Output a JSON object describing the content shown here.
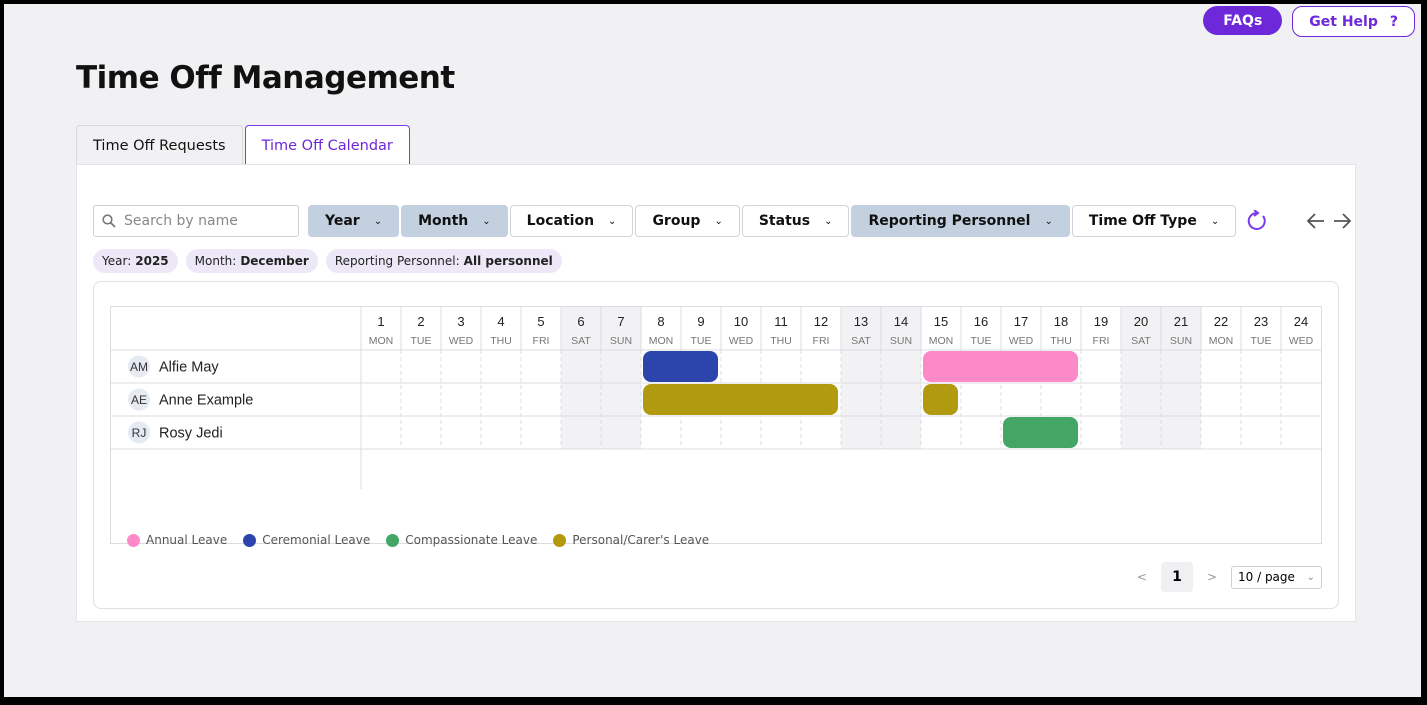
{
  "header": {
    "faqs_label": "FAQs",
    "help_label": "Get Help",
    "help_icon": "?"
  },
  "page_title": "Time Off Management",
  "tabs": [
    {
      "label": "Time Off Requests",
      "active": false
    },
    {
      "label": "Time Off Calendar",
      "active": true
    }
  ],
  "search": {
    "placeholder": "Search by name",
    "value": ""
  },
  "filters": [
    {
      "label": "Year",
      "active": true
    },
    {
      "label": "Month",
      "active": true
    },
    {
      "label": "Location",
      "active": false
    },
    {
      "label": "Group",
      "active": false
    },
    {
      "label": "Status",
      "active": false
    },
    {
      "label": "Reporting Personnel",
      "active": true
    },
    {
      "label": "Time Off Type",
      "active": false
    }
  ],
  "chips": [
    {
      "key": "Year:",
      "value": "2025"
    },
    {
      "key": "Month:",
      "value": "December"
    },
    {
      "key": "Reporting Personnel:",
      "value": "All personnel"
    }
  ],
  "calendar": {
    "days": [
      {
        "d": "1",
        "w": "MON"
      },
      {
        "d": "2",
        "w": "TUE"
      },
      {
        "d": "3",
        "w": "WED"
      },
      {
        "d": "4",
        "w": "THU"
      },
      {
        "d": "5",
        "w": "FRI"
      },
      {
        "d": "6",
        "w": "SAT"
      },
      {
        "d": "7",
        "w": "SUN"
      },
      {
        "d": "8",
        "w": "MON"
      },
      {
        "d": "9",
        "w": "TUE"
      },
      {
        "d": "10",
        "w": "WED"
      },
      {
        "d": "11",
        "w": "THU"
      },
      {
        "d": "12",
        "w": "FRI"
      },
      {
        "d": "13",
        "w": "SAT"
      },
      {
        "d": "14",
        "w": "SUN"
      },
      {
        "d": "15",
        "w": "MON"
      },
      {
        "d": "16",
        "w": "TUE"
      },
      {
        "d": "17",
        "w": "WED"
      },
      {
        "d": "18",
        "w": "THU"
      },
      {
        "d": "19",
        "w": "FRI"
      },
      {
        "d": "20",
        "w": "SAT"
      },
      {
        "d": "21",
        "w": "SUN"
      },
      {
        "d": "22",
        "w": "MON"
      },
      {
        "d": "23",
        "w": "TUE"
      },
      {
        "d": "24",
        "w": "WED"
      }
    ],
    "people": [
      {
        "initials": "AM",
        "name": "Alfie May"
      },
      {
        "initials": "AE",
        "name": "Anne Example"
      },
      {
        "initials": "RJ",
        "name": "Rosy Jedi"
      }
    ],
    "leaves": [
      {
        "person": 0,
        "type": "Ceremonial Leave",
        "start": 8,
        "end": 9
      },
      {
        "person": 0,
        "type": "Annual Leave",
        "start": 15,
        "end": 18
      },
      {
        "person": 1,
        "type": "Personal/Carer's Leave",
        "start": 8,
        "end": 12
      },
      {
        "person": 1,
        "type": "Personal/Carer's Leave",
        "start": 15,
        "end": 15
      },
      {
        "person": 2,
        "type": "Compassionate Leave",
        "start": 17,
        "end": 18
      }
    ]
  },
  "legend": [
    {
      "label": "Annual Leave",
      "color": "#fc8ac8"
    },
    {
      "label": "Ceremonial Leave",
      "color": "#2c45ad"
    },
    {
      "label": "Compassionate Leave",
      "color": "#44a664"
    },
    {
      "label": "Personal/Carer's Leave",
      "color": "#b29a10"
    }
  ],
  "pagination": {
    "prev": "<",
    "page": "1",
    "next": ">",
    "page_size": "10 / page"
  }
}
